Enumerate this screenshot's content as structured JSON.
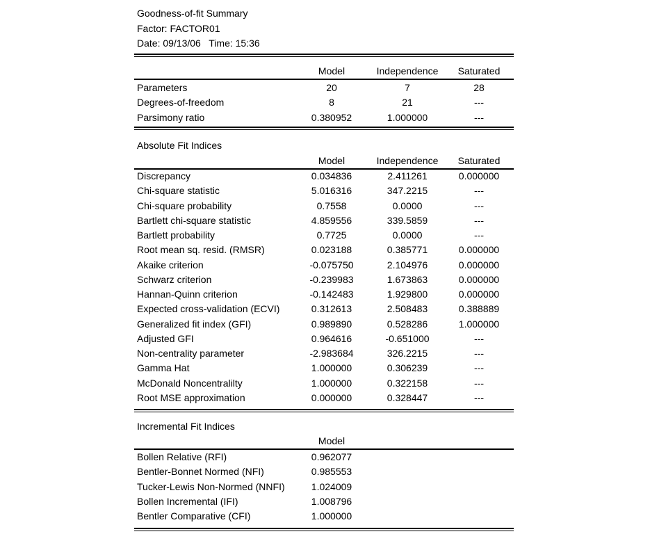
{
  "header": {
    "title": "Goodness-of-fit Summary",
    "factor": "Factor: FACTOR01",
    "date_time": "Date: 09/13/06   Time: 15:36"
  },
  "columns": [
    "Model",
    "Independence",
    "Saturated"
  ],
  "summary": {
    "rows": [
      {
        "label": "Parameters",
        "values": [
          "20",
          "7",
          "28"
        ]
      },
      {
        "label": "Degrees-of-freedom",
        "values": [
          "8",
          "21",
          "---"
        ]
      },
      {
        "label": "Parsimony ratio",
        "values": [
          "0.380952",
          "1.000000",
          "---"
        ]
      }
    ]
  },
  "absolute": {
    "title": "Absolute Fit Indices",
    "rows": [
      {
        "label": "Discrepancy",
        "values": [
          "0.034836",
          "2.411261",
          "0.000000"
        ]
      },
      {
        "label": "Chi-square statistic",
        "values": [
          "5.016316",
          "347.2215",
          "---"
        ]
      },
      {
        "label": "Chi-square probability",
        "values": [
          "0.7558",
          "0.0000",
          "---"
        ]
      },
      {
        "label": "Bartlett chi-square statistic",
        "values": [
          "4.859556",
          "339.5859",
          "---"
        ]
      },
      {
        "label": "Bartlett probability",
        "values": [
          "0.7725",
          "0.0000",
          "---"
        ]
      },
      {
        "label": "Root mean sq. resid. (RMSR)",
        "values": [
          "0.023188",
          "0.385771",
          "0.000000"
        ]
      },
      {
        "label": "Akaike criterion",
        "values": [
          "-0.075750",
          "2.104976",
          "0.000000"
        ]
      },
      {
        "label": "Schwarz criterion",
        "values": [
          "-0.239983",
          "1.673863",
          "0.000000"
        ]
      },
      {
        "label": "Hannan-Quinn criterion",
        "values": [
          "-0.142483",
          "1.929800",
          "0.000000"
        ]
      },
      {
        "label": "Expected cross-validation (ECVI)",
        "values": [
          "0.312613",
          "2.508483",
          "0.388889"
        ]
      },
      {
        "label": "Generalized fit index (GFI)",
        "values": [
          "0.989890",
          "0.528286",
          "1.000000"
        ]
      },
      {
        "label": "Adjusted GFI",
        "values": [
          "0.964616",
          "-0.651000",
          "---"
        ]
      },
      {
        "label": "Non-centrality parameter",
        "values": [
          "-2.983684",
          "326.2215",
          "---"
        ]
      },
      {
        "label": "Gamma Hat",
        "values": [
          "1.000000",
          "0.306239",
          "---"
        ]
      },
      {
        "label": "McDonald Noncentralilty",
        "values": [
          "1.000000",
          "0.322158",
          "---"
        ]
      },
      {
        "label": "Root MSE approximation",
        "values": [
          "0.000000",
          "0.328447",
          "---"
        ]
      }
    ]
  },
  "incremental": {
    "title": "Incremental Fit Indices",
    "columns": [
      "Model"
    ],
    "rows": [
      {
        "label": "Bollen Relative (RFI)",
        "values": [
          "0.962077"
        ]
      },
      {
        "label": "Bentler-Bonnet Normed (NFI)",
        "values": [
          "0.985553"
        ]
      },
      {
        "label": "Tucker-Lewis Non-Normed (NNFI)",
        "values": [
          "1.024009"
        ]
      },
      {
        "label": "Bollen Incremental (IFI)",
        "values": [
          "1.008796"
        ]
      },
      {
        "label": "Bentler Comparative (CFI)",
        "values": [
          "1.000000"
        ]
      }
    ]
  }
}
